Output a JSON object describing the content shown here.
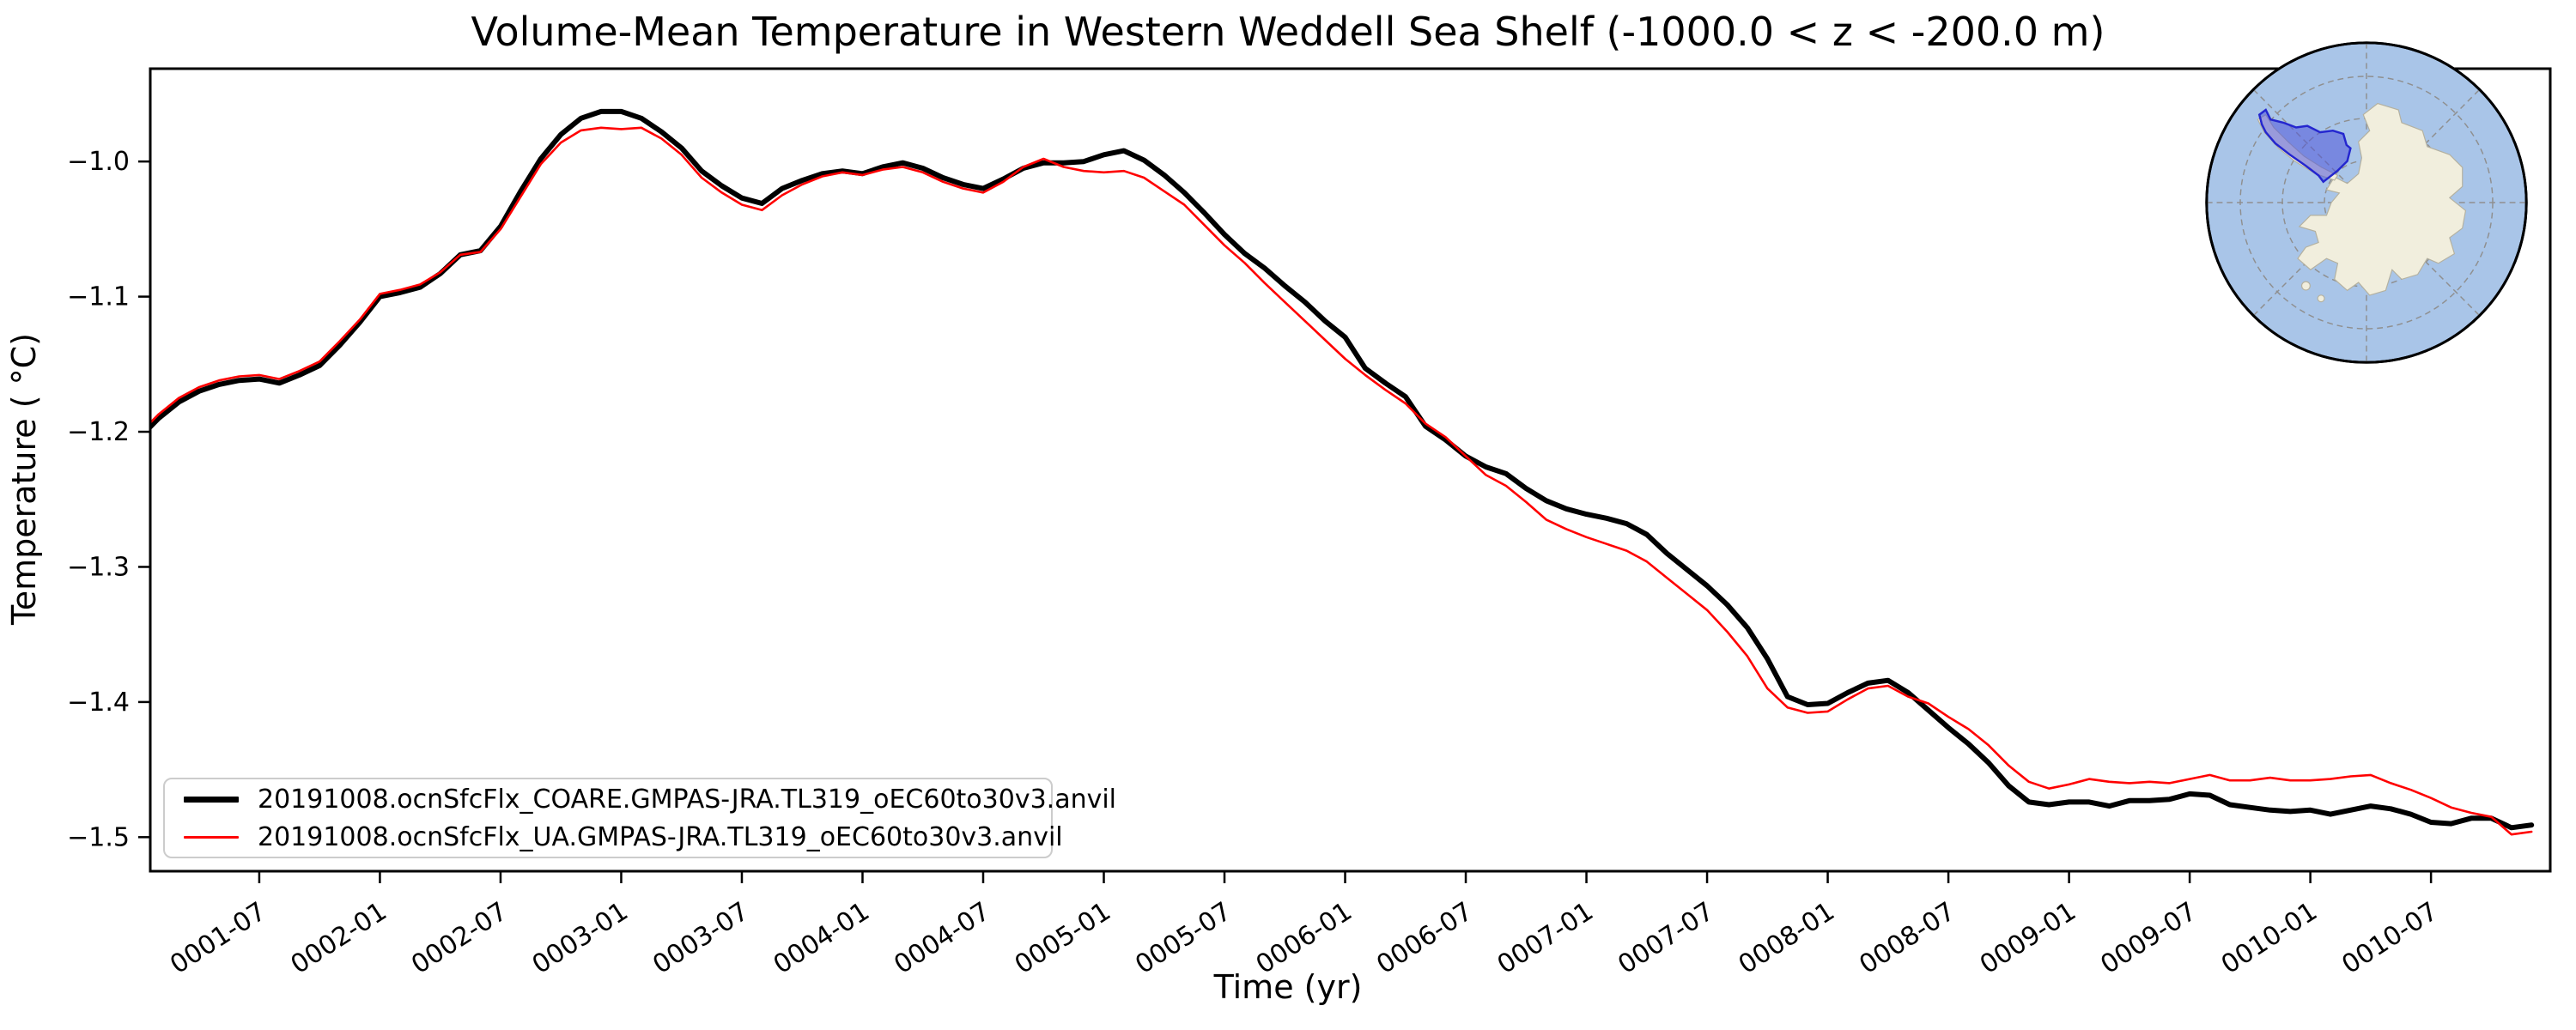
{
  "title": "Volume-Mean Temperature in Western Weddell Sea Shelf (-1000.0 < z < -200.0 m)",
  "axes": {
    "xlabel": "Time (yr)",
    "ylabel": "Temperature ( °C)"
  },
  "legend": [
    {
      "label": "20191008.ocnSfcFlx_COARE.GMPAS-JRA.TL319_oEC60to30v3.anvil",
      "color": "#000000",
      "linewidth": 7
    },
    {
      "label": "20191008.ocnSfcFlx_UA.GMPAS-JRA.TL319_oEC60to30v3.anvil",
      "color": "#ff0000",
      "linewidth": 3
    }
  ],
  "map_inset": {
    "name": "antarctica-region-locator",
    "colors": {
      "ocean": "#a9c5e8",
      "land": "#f1eedd",
      "coast": "#b4b1a0",
      "graticule": "#8f8f8f",
      "region_fill": "#5156d9",
      "region_stroke": "#2426cf",
      "border": "#000000"
    }
  },
  "chart_data": {
    "type": "line",
    "title": "Volume-Mean Temperature in Western Weddell Sea Shelf (-1000.0 < z < -200.0 m)",
    "xlabel": "Time (yr)",
    "ylabel": "Temperature ( °C)",
    "x_start": "0001-01",
    "x_step": "1 month",
    "n_points": 120,
    "xlim_month_index": [
      0.58,
      119.93
    ],
    "ylim": [
      -1.5252,
      -0.9313
    ],
    "grid": false,
    "legend_position": "lower left",
    "yticks": {
      "values": [
        -1.0,
        -1.1,
        -1.2,
        -1.3,
        -1.4,
        -1.5
      ],
      "labels": [
        "−1.0",
        "−1.1",
        "−1.2",
        "−1.3",
        "−1.4",
        "−1.5"
      ]
    },
    "xticks": {
      "month_indices": [
        6,
        12,
        18,
        24,
        30,
        36,
        42,
        48,
        54,
        60,
        66,
        72,
        78,
        84,
        90,
        96,
        102,
        108,
        114
      ],
      "labels": [
        "0001-07",
        "0002-01",
        "0002-07",
        "0003-01",
        "0003-07",
        "0004-01",
        "0004-07",
        "0005-01",
        "0005-07",
        "0006-01",
        "0006-07",
        "0007-01",
        "0007-07",
        "0008-01",
        "0008-07",
        "0009-01",
        "0009-07",
        "0010-01",
        "0010-07"
      ],
      "rotation_deg": -33
    },
    "series": [
      {
        "name": "20191008.ocnSfcFlx_COARE.GMPAS-JRA.TL319_oEC60to30v3.anvil",
        "color": "#000000",
        "linewidth": 6,
        "values": [
          -1.205,
          -1.19,
          -1.178,
          -1.17,
          -1.165,
          -1.162,
          -1.161,
          -1.164,
          -1.158,
          -1.151,
          -1.136,
          -1.119,
          -1.1,
          -1.097,
          -1.093,
          -1.083,
          -1.069,
          -1.066,
          -1.048,
          -1.022,
          -0.998,
          -0.98,
          -0.968,
          -0.963,
          -0.963,
          -0.968,
          -0.978,
          -0.99,
          -1.007,
          -1.018,
          -1.027,
          -1.031,
          -1.02,
          -1.014,
          -1.009,
          -1.007,
          -1.009,
          -1.004,
          -1.001,
          -1.005,
          -1.012,
          -1.017,
          -1.02,
          -1.013,
          -1.005,
          -1.001,
          -1.001,
          -1.0,
          -0.995,
          -0.992,
          -0.999,
          -1.01,
          -1.023,
          -1.038,
          -1.054,
          -1.068,
          -1.079,
          -1.092,
          -1.104,
          -1.118,
          -1.13,
          -1.153,
          -1.164,
          -1.174,
          -1.196,
          -1.206,
          -1.218,
          -1.226,
          -1.231,
          -1.242,
          -1.251,
          -1.257,
          -1.261,
          -1.264,
          -1.268,
          -1.276,
          -1.29,
          -1.302,
          -1.314,
          -1.328,
          -1.345,
          -1.368,
          -1.396,
          -1.402,
          -1.401,
          -1.393,
          -1.386,
          -1.384,
          -1.393,
          -1.406,
          -1.419,
          -1.431,
          -1.445,
          -1.462,
          -1.474,
          -1.476,
          -1.474,
          -1.474,
          -1.477,
          -1.473,
          -1.473,
          -1.472,
          -1.468,
          -1.469,
          -1.476,
          -1.478,
          -1.48,
          -1.481,
          -1.48,
          -1.483,
          -1.48,
          -1.477,
          -1.479,
          -1.483,
          -1.489,
          -1.49,
          -1.486,
          -1.486,
          -1.493,
          -1.491
        ]
      },
      {
        "name": "20191008.ocnSfcFlx_UA.GMPAS-JRA.TL319_oEC60to30v3.anvil",
        "color": "#ff0000",
        "linewidth": 2.6,
        "values": [
          -1.202,
          -1.187,
          -1.175,
          -1.167,
          -1.162,
          -1.159,
          -1.158,
          -1.161,
          -1.155,
          -1.148,
          -1.133,
          -1.117,
          -1.098,
          -1.095,
          -1.091,
          -1.082,
          -1.069,
          -1.067,
          -1.05,
          -1.026,
          -1.002,
          -0.986,
          -0.977,
          -0.975,
          -0.976,
          -0.975,
          -0.983,
          -0.995,
          -1.012,
          -1.023,
          -1.032,
          -1.036,
          -1.025,
          -1.017,
          -1.011,
          -1.008,
          -1.01,
          -1.006,
          -1.004,
          -1.008,
          -1.015,
          -1.02,
          -1.023,
          -1.015,
          -1.004,
          -0.998,
          -1.004,
          -1.007,
          -1.008,
          -1.007,
          -1.012,
          -1.022,
          -1.032,
          -1.047,
          -1.062,
          -1.075,
          -1.09,
          -1.104,
          -1.118,
          -1.132,
          -1.146,
          -1.158,
          -1.169,
          -1.179,
          -1.194,
          -1.204,
          -1.218,
          -1.232,
          -1.24,
          -1.252,
          -1.265,
          -1.272,
          -1.278,
          -1.283,
          -1.288,
          -1.296,
          -1.308,
          -1.32,
          -1.332,
          -1.348,
          -1.366,
          -1.39,
          -1.404,
          -1.408,
          -1.407,
          -1.398,
          -1.39,
          -1.388,
          -1.396,
          -1.401,
          -1.411,
          -1.42,
          -1.432,
          -1.447,
          -1.459,
          -1.464,
          -1.461,
          -1.457,
          -1.459,
          -1.46,
          -1.459,
          -1.46,
          -1.457,
          -1.454,
          -1.458,
          -1.458,
          -1.456,
          -1.458,
          -1.458,
          -1.457,
          -1.455,
          -1.454,
          -1.46,
          -1.465,
          -1.471,
          -1.478,
          -1.482,
          -1.485,
          -1.498,
          -1.496
        ]
      }
    ]
  }
}
